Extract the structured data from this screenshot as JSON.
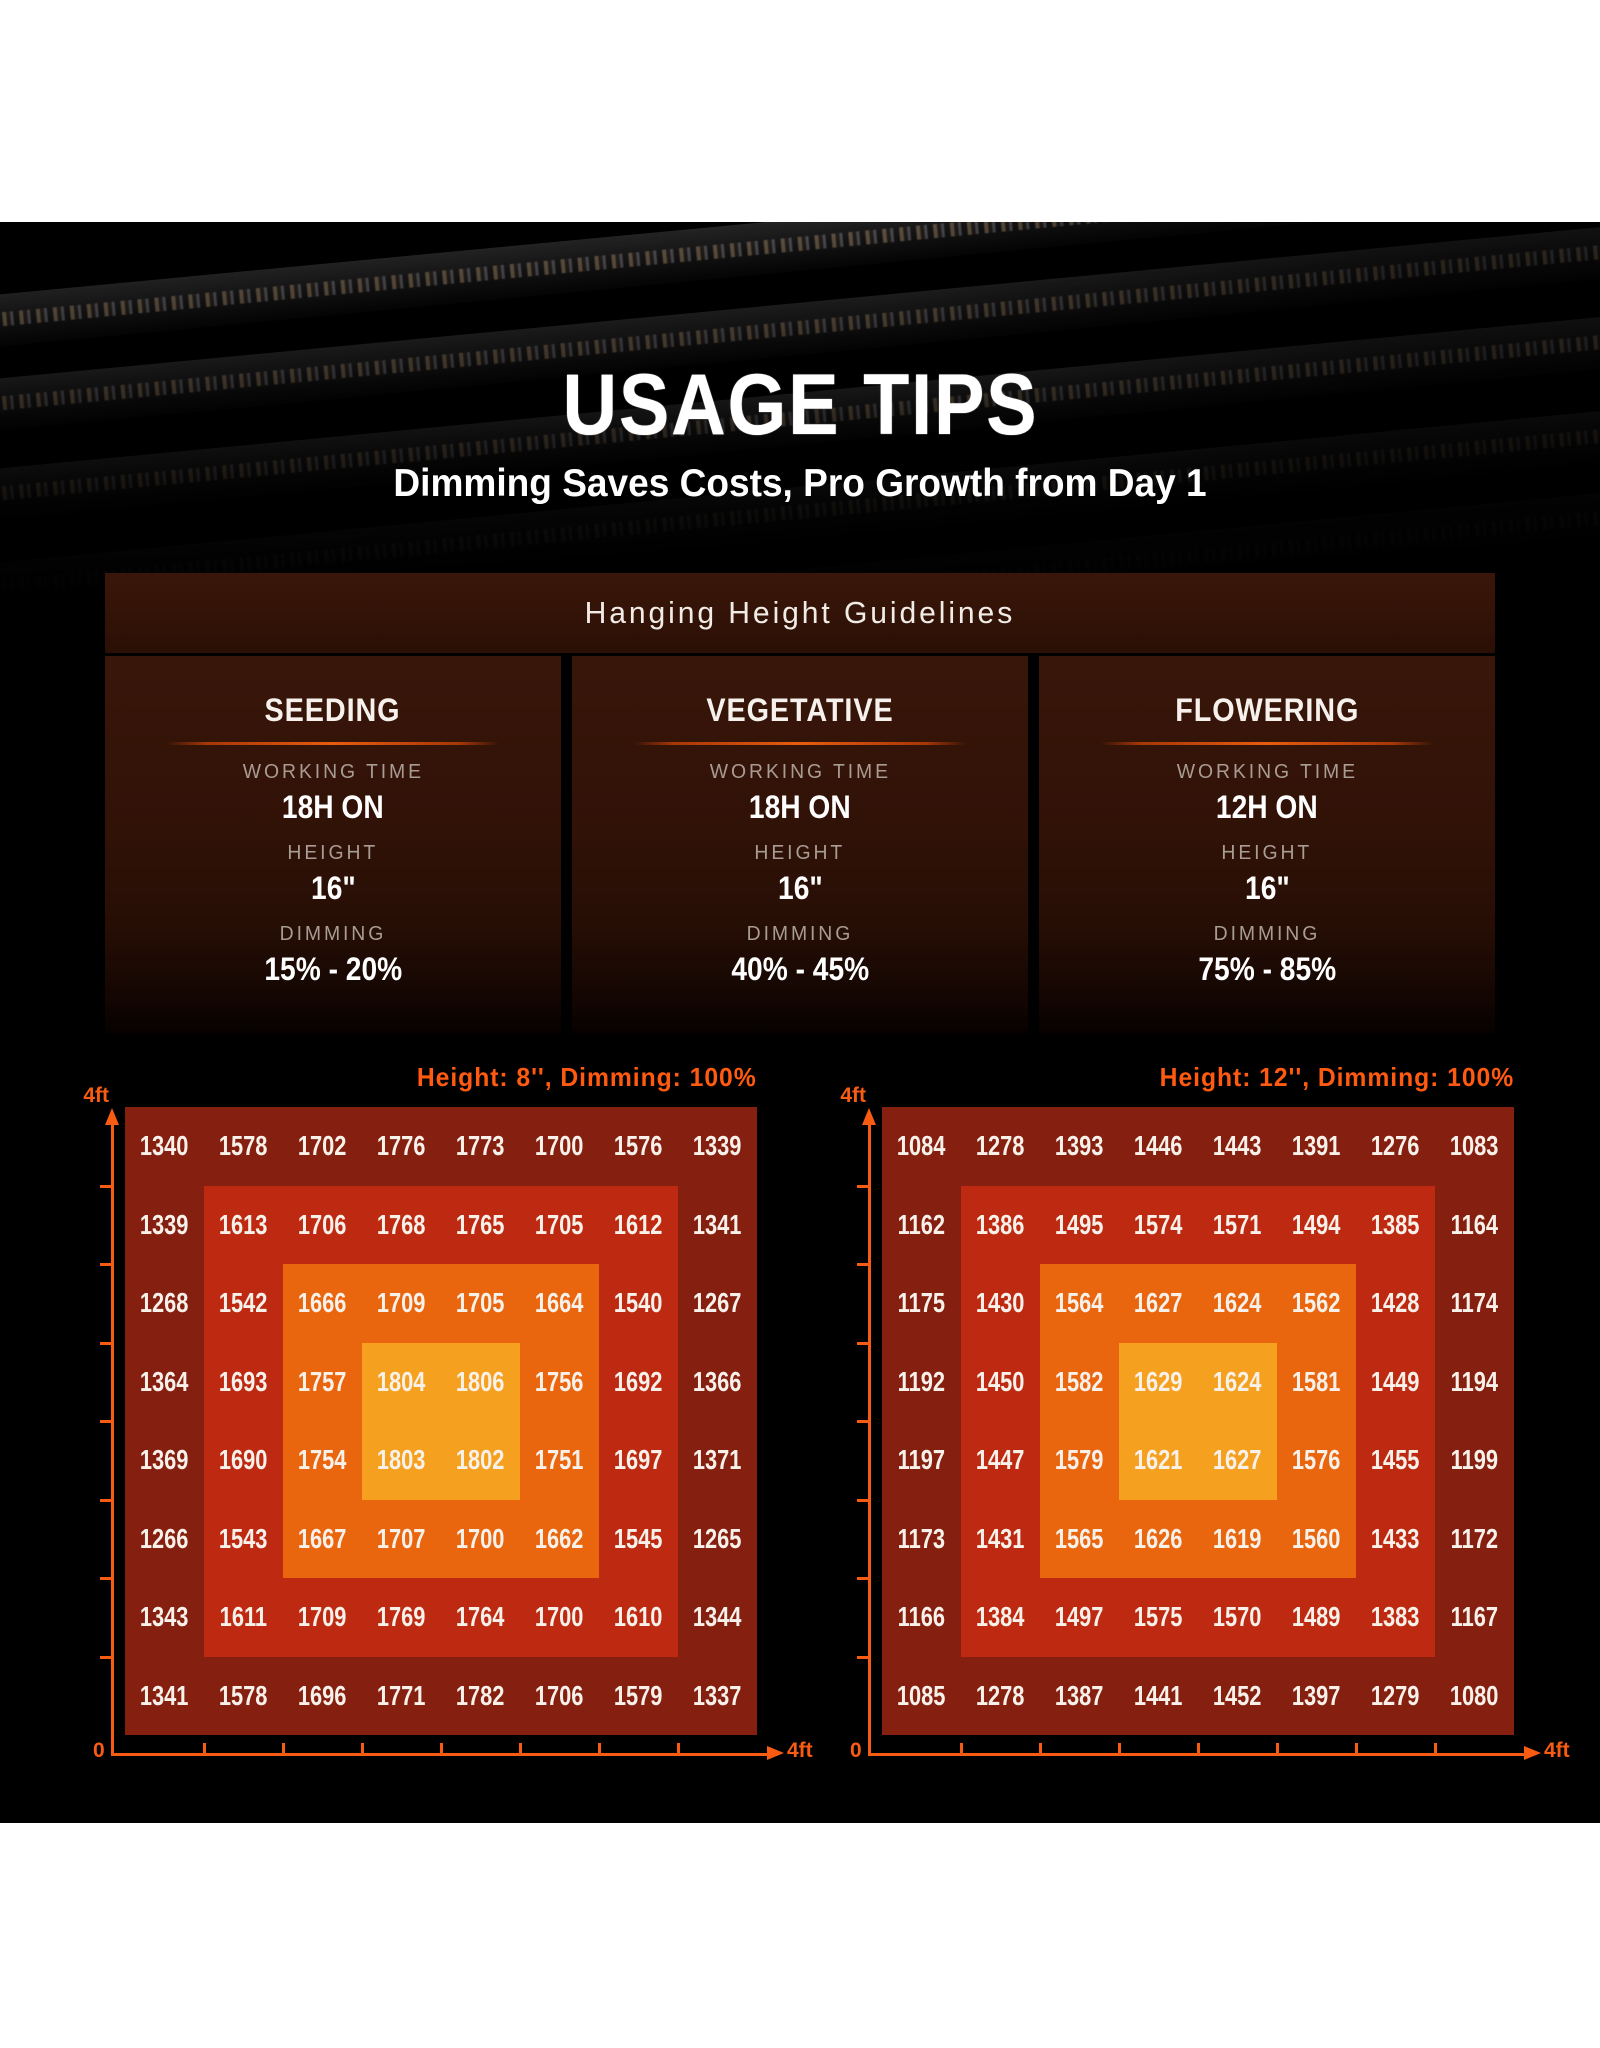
{
  "page": {
    "title": "USAGE TIPS",
    "subtitle": "Dimming Saves Costs, Pro Growth from Day 1"
  },
  "guidelines": {
    "header": "Hanging Height Guidelines",
    "cards": [
      {
        "title": "SEEDING",
        "working_time_label": "WORKING TIME",
        "working_time": "18H ON",
        "height_label": "HEIGHT",
        "height": "16\"",
        "dimming_label": "DIMMING",
        "dimming": "15% - 20%"
      },
      {
        "title": "VEGETATIVE",
        "working_time_label": "WORKING TIME",
        "working_time": "18H ON",
        "height_label": "HEIGHT",
        "height": "16\"",
        "dimming_label": "DIMMING",
        "dimming": "40% - 45%"
      },
      {
        "title": "FLOWERING",
        "working_time_label": "WORKING TIME",
        "working_time": "12H ON",
        "height_label": "HEIGHT",
        "height": "16\"",
        "dimming_label": "DIMMING",
        "dimming": "75% - 85%"
      }
    ]
  },
  "chart_data": [
    {
      "type": "heatmap",
      "title": "Height: 8'', Dimming: 100%",
      "rows": 8,
      "cols": 8,
      "x_axis": {
        "origin_label": "0",
        "end_label": "4ft"
      },
      "y_axis": {
        "end_label": "4ft"
      },
      "values": [
        [
          1340,
          1578,
          1702,
          1776,
          1773,
          1700,
          1576,
          1339
        ],
        [
          1339,
          1613,
          1706,
          1768,
          1765,
          1705,
          1612,
          1341
        ],
        [
          1268,
          1542,
          1666,
          1709,
          1705,
          1664,
          1540,
          1267
        ],
        [
          1364,
          1693,
          1757,
          1804,
          1806,
          1756,
          1692,
          1366
        ],
        [
          1369,
          1690,
          1754,
          1803,
          1802,
          1751,
          1697,
          1371
        ],
        [
          1266,
          1543,
          1667,
          1707,
          1700,
          1662,
          1545,
          1265
        ],
        [
          1343,
          1611,
          1709,
          1769,
          1764,
          1700,
          1610,
          1344
        ],
        [
          1341,
          1578,
          1696,
          1771,
          1782,
          1706,
          1579,
          1337
        ]
      ]
    },
    {
      "type": "heatmap",
      "title": "Height: 12'', Dimming: 100%",
      "rows": 8,
      "cols": 8,
      "x_axis": {
        "origin_label": "0",
        "end_label": "4ft"
      },
      "y_axis": {
        "end_label": "4ft"
      },
      "values": [
        [
          1084,
          1278,
          1393,
          1446,
          1443,
          1391,
          1276,
          1083
        ],
        [
          1162,
          1386,
          1495,
          1574,
          1571,
          1494,
          1385,
          1164
        ],
        [
          1175,
          1430,
          1564,
          1627,
          1624,
          1562,
          1428,
          1174
        ],
        [
          1192,
          1450,
          1582,
          1629,
          1624,
          1581,
          1449,
          1194
        ],
        [
          1197,
          1447,
          1579,
          1621,
          1627,
          1576,
          1455,
          1199
        ],
        [
          1173,
          1431,
          1565,
          1626,
          1619,
          1560,
          1433,
          1172
        ],
        [
          1166,
          1384,
          1497,
          1575,
          1570,
          1489,
          1383,
          1167
        ],
        [
          1085,
          1278,
          1387,
          1441,
          1452,
          1397,
          1279,
          1080
        ]
      ]
    }
  ],
  "colors": {
    "zone_outer": "#851f10",
    "zone_mid": "#bd2a11",
    "zone_inner": "#e9650e",
    "zone_center": "#f5a01e",
    "accent_orange": "#ff5a10",
    "axis_orange": "#f85c12",
    "label_gray": "#a89c94"
  }
}
